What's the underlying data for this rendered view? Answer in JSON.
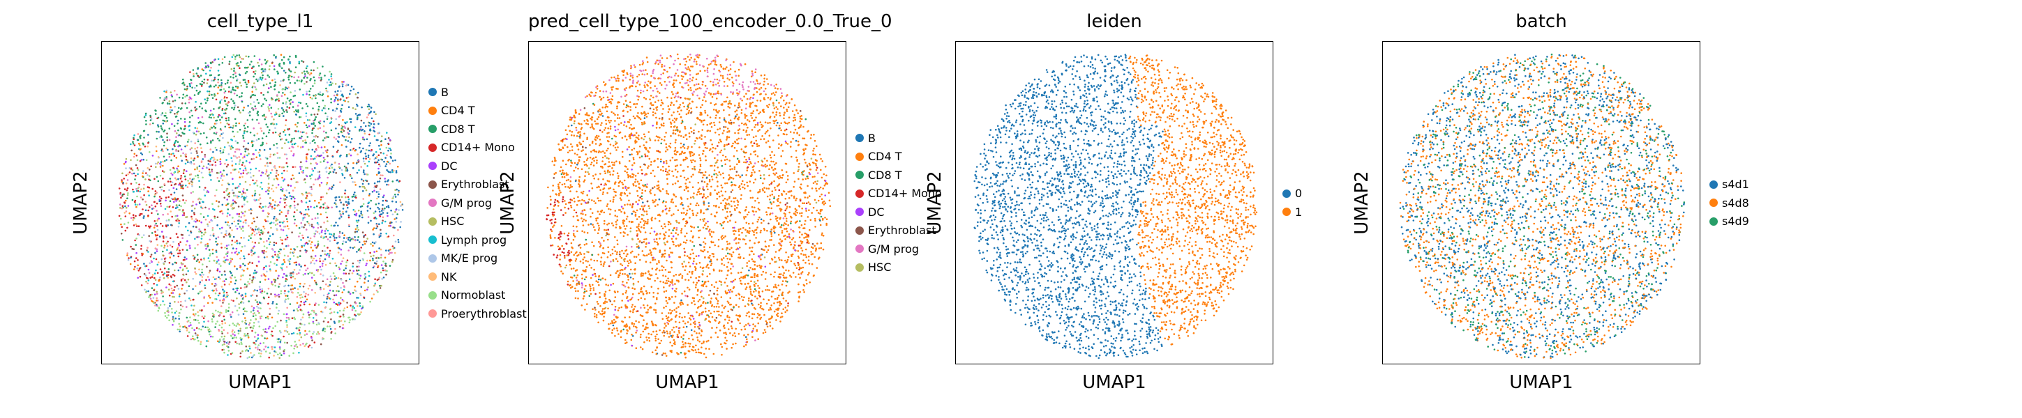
{
  "palette": [
    "#1f77b4",
    "#ff7f0e",
    "#279e68",
    "#d62728",
    "#aa40fc",
    "#8c564b",
    "#e377c2",
    "#b5bd61",
    "#17becf",
    "#aec7e8",
    "#ffbb78",
    "#98df8a",
    "#ff9896"
  ],
  "chart_data": [
    {
      "type": "scatter",
      "title": "cell_type_l1",
      "xlabel": "UMAP1",
      "ylabel": "UMAP2",
      "legend_placement": "right",
      "grid": false,
      "categories": [
        "B",
        "CD4 T",
        "CD8 T",
        "CD14+ Mono",
        "DC",
        "Erythroblast",
        "G/M prog",
        "HSC",
        "Lymph prog",
        "MK/E prog",
        "NK",
        "Normoblast",
        "Proerythroblast"
      ]
    },
    {
      "type": "scatter",
      "title": "pred_cell_type_100_encoder_0.0_True_0",
      "xlabel": "UMAP1",
      "ylabel": "UMAP2",
      "legend_placement": "right",
      "grid": false,
      "categories": [
        "B",
        "CD4 T",
        "CD8 T",
        "CD14+ Mono",
        "DC",
        "Erythroblast",
        "G/M prog",
        "HSC"
      ]
    },
    {
      "type": "scatter",
      "title": "leiden",
      "xlabel": "UMAP1",
      "ylabel": "UMAP2",
      "legend_placement": "right",
      "grid": false,
      "categories": [
        "0",
        "1"
      ]
    },
    {
      "type": "scatter",
      "title": "batch",
      "xlabel": "UMAP1",
      "ylabel": "UMAP2",
      "legend_placement": "right",
      "grid": false,
      "categories": [
        "s4d1",
        "s4d8",
        "s4d9"
      ]
    }
  ]
}
